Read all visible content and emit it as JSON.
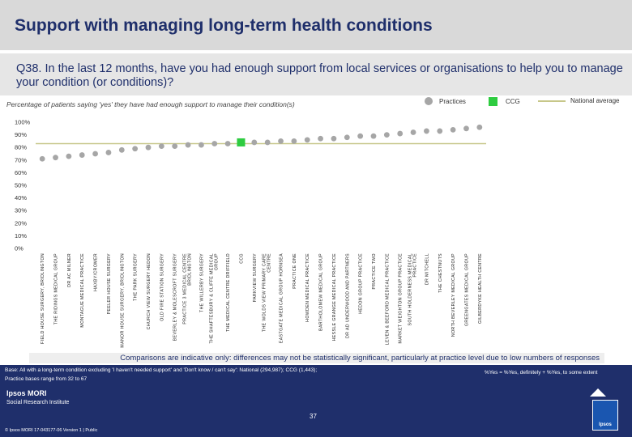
{
  "header": {
    "title": "Support with managing long-term health conditions",
    "question": "Q38. In the last 12 months, have you had enough support from local services or organisations to help you to manage your condition (or conditions)?",
    "subtitle": "Percentage of patients saying 'yes' they have had enough support to manage their condition(s)"
  },
  "legend": {
    "practices": "Practices",
    "ccg": "CCG",
    "national": "National average"
  },
  "colors": {
    "practice_dot": "#a6a6a6",
    "ccg_marker": "#2ecc40",
    "national_line": "#c7c789",
    "navy": "#1f2f6b"
  },
  "footnote": "Comparisons are indicative only: differences may not be statistically significant, particularly at practice level due to low numbers of responses",
  "footer": {
    "base_line1": "Base: All with a long-term condition excluding 'I haven't needed support' and 'Don't know / can't say': National (294,987); CCG (1,443);",
    "base_line2": "Practice bases range from 32 to 67",
    "yes_note": "%Yes = %Yes, definitely + %Yes, to some extent",
    "logo": "Ipsos MORI",
    "logo_sub": "Social Research Institute",
    "page": "37",
    "copyright": "© Ipsos MORI     17-043177-06 Version 1 | Public",
    "brand": "Ipsos"
  },
  "chart_data": {
    "type": "scatter",
    "ylim": [
      0,
      100
    ],
    "yticks": [
      "0%",
      "10%",
      "20%",
      "30%",
      "40%",
      "50%",
      "60%",
      "70%",
      "80%",
      "90%",
      "100%"
    ],
    "national_average": 83,
    "ccg_category": "CCG",
    "categories": [
      [
        "FIELD HOUSE SURGERY, BRIDLINGTON"
      ],
      [
        "THE RIDINGS MEDICAL GROUP"
      ],
      [
        "DR AC MILNER"
      ],
      [
        "MONTAGUE MEDICAL PRACTICE"
      ],
      [
        "HAXBY/CROMER"
      ],
      [
        "PEELER HOUSE SURGERY"
      ],
      [
        "MANOR HOUSE SURGERY, BRIDLINGTON"
      ],
      [
        "THE PARK SURGERY"
      ],
      [
        "CHURCH VIEW SURGERY HEDON"
      ],
      [
        "OLD FIRE STATION SURGERY"
      ],
      [
        "BEVERLEY & MOLESCROFT SURGERY"
      ],
      [
        "PRACTICE 3 MEDICAL CENTRE",
        "BRIDLINGTON"
      ],
      [
        "THE WILLERBY SURGERY"
      ],
      [
        "THE SHAFTESBURY & CLIFFE MEDICAL",
        "GROUP"
      ],
      [
        "THE MEDICAL CENTRE DRIFFIELD"
      ],
      [
        "CCG"
      ],
      [
        "PARKVIEW SURGERY"
      ],
      [
        "THE WOLDS VIEW PRIMARY CARE",
        "CENTRE"
      ],
      [
        "EASTGATE MEDICAL GROUP HORNSEA"
      ],
      [
        "PRACTICE ONE"
      ],
      [
        "HOWDEN MEDICAL PRACTICE"
      ],
      [
        "BARTHOLOMEW MEDICAL GROUP"
      ],
      [
        "HESSLE GRANGE MEDICAL PRACTICE"
      ],
      [
        "DR AD UNDERWOOD AND PARTNERS"
      ],
      [
        "HEDON GROUP PRACTICE"
      ],
      [
        "PRACTICE TWO"
      ],
      [
        "LEVEN & BEEFORD MEDICAL PRACTICE"
      ],
      [
        "MARKET WEIGHTON GROUP PRACTICE"
      ],
      [
        "SOUTH HOLDERNESS MEDICAL",
        "PRACTICE"
      ],
      [
        "DR MITCHELL"
      ],
      [
        "THE CHESTNUTS"
      ],
      [
        "NORTH BEVERLEY MEDICAL GROUP"
      ],
      [
        "GREENGATES MEDICAL GROUP"
      ],
      [
        "GILBERDYKE HEALTH CENTRE"
      ]
    ],
    "values": [
      71,
      72,
      73,
      74,
      75,
      76,
      78,
      79,
      80,
      81,
      81,
      82,
      82,
      83,
      83,
      84,
      84,
      84,
      85,
      85,
      86,
      87,
      87,
      88,
      89,
      89,
      90,
      91,
      92,
      93,
      93,
      94,
      95,
      96
    ]
  }
}
